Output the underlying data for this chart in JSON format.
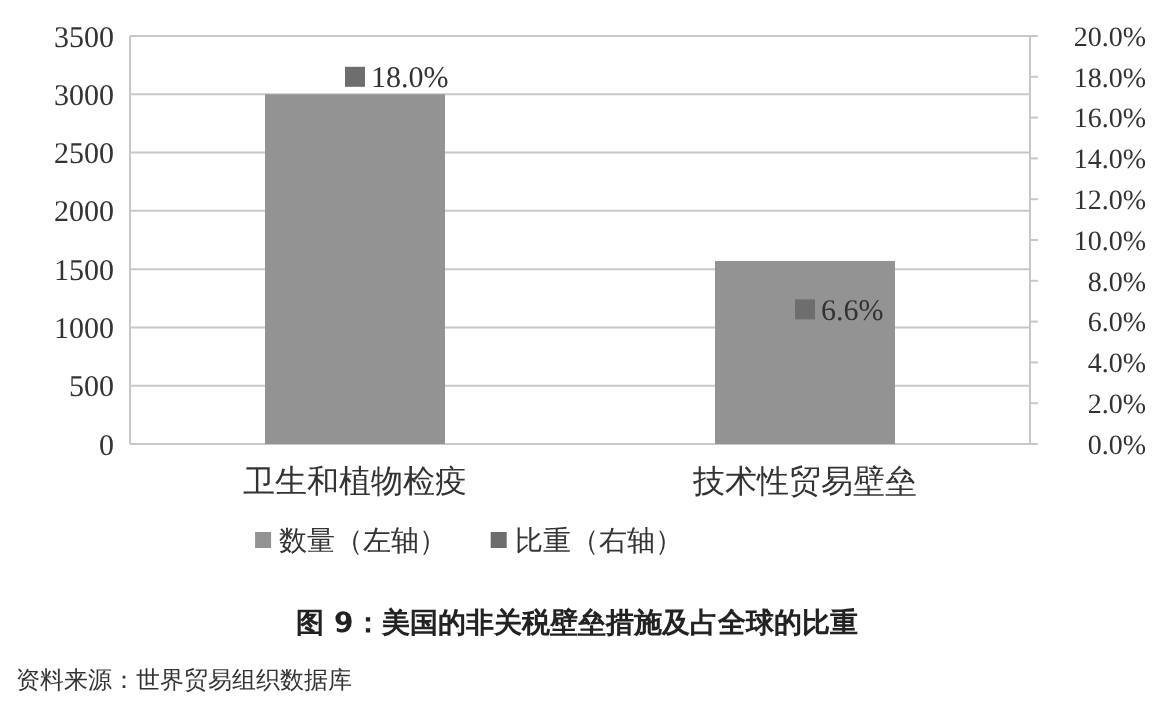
{
  "chart_data": {
    "type": "bar",
    "title": "图 9：美国的非关税壁垒措施及占全球的比重",
    "annotations": [
      "资料来源：世界贸易组织数据库"
    ],
    "categories": [
      "卫生和植物检疫",
      "技术性贸易壁垒"
    ],
    "series": [
      {
        "name": "数量（左轴）",
        "color": "#939393",
        "values": [
          3000,
          1570
        ]
      },
      {
        "name": "比重（右轴）",
        "type": "scatter",
        "axis": "y2",
        "marker": "square",
        "color": "#6e6e6e",
        "values": [
          18.0,
          6.6
        ],
        "value_labels": [
          "18.0%",
          "6.6%"
        ]
      }
    ],
    "ylim": [
      0,
      3500
    ],
    "yticks": [
      0,
      500,
      1000,
      1500,
      2000,
      2500,
      3000,
      3500
    ],
    "y2lim": [
      0,
      20
    ],
    "y2ticks": [
      {
        "value": 0,
        "label": "0.0%"
      },
      {
        "value": 2,
        "label": "2.0%"
      },
      {
        "value": 4,
        "label": "4.0%"
      },
      {
        "value": 6,
        "label": "6.0%"
      },
      {
        "value": 8,
        "label": "8.0%"
      },
      {
        "value": 10,
        "label": "10.0%"
      },
      {
        "value": 12,
        "label": "12.0%"
      },
      {
        "value": 14,
        "label": "14.0%"
      },
      {
        "value": 16,
        "label": "16.0%"
      },
      {
        "value": 18,
        "label": "18.0%"
      },
      {
        "value": 20,
        "label": "20.0%"
      }
    ],
    "grid": "y",
    "legend": "bottom"
  }
}
